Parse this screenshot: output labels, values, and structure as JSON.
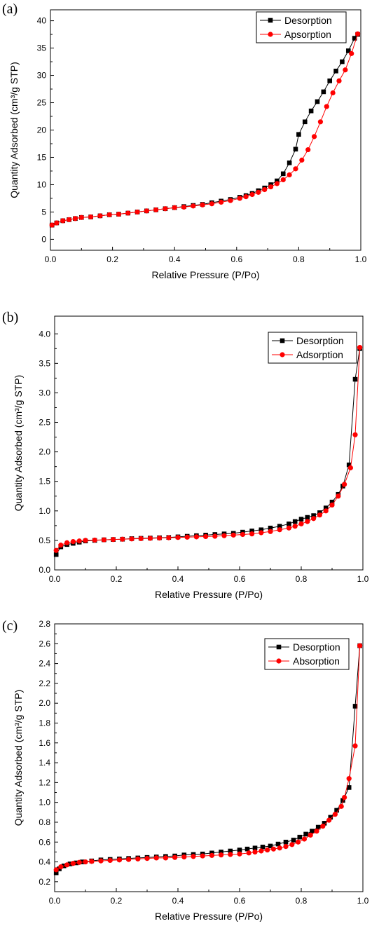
{
  "chart_data": [
    {
      "type": "scatter",
      "panel_label": "(a)",
      "xlabel": "Relative Pressure (P/Po)",
      "ylabel": "Quantity Adsorbed (cm³/g STP)",
      "xlim": [
        0,
        1.0
      ],
      "ylim": [
        -2,
        42
      ],
      "xticks": [
        0.0,
        0.2,
        0.4,
        0.6,
        0.8,
        1.0
      ],
      "yticks": [
        0,
        5,
        10,
        15,
        20,
        25,
        30,
        35,
        40
      ],
      "xtick_labels": [
        "0.0",
        "0.2",
        "0.4",
        "0.6",
        "0.8",
        "1.0"
      ],
      "ytick_labels": [
        "0",
        "5",
        "10",
        "15",
        "20",
        "25",
        "30",
        "35",
        "40"
      ],
      "legend_position": "top-right",
      "grid": false,
      "series": [
        {
          "name": "Desorption",
          "color": "#000000",
          "marker": "square",
          "x": [
            0.99,
            0.98,
            0.96,
            0.94,
            0.92,
            0.9,
            0.88,
            0.86,
            0.84,
            0.82,
            0.8,
            0.79,
            0.77,
            0.75,
            0.73,
            0.71,
            0.69,
            0.67,
            0.65,
            0.63,
            0.61,
            0.58,
            0.55,
            0.52,
            0.49,
            0.46,
            0.43,
            0.4,
            0.37,
            0.34,
            0.31,
            0.28,
            0.25,
            0.22,
            0.19,
            0.16,
            0.13,
            0.1,
            0.08,
            0.06,
            0.04,
            0.02,
            0.005
          ],
          "y": [
            37.5,
            36.8,
            34.5,
            32.5,
            30.8,
            29.0,
            27.0,
            25.2,
            23.5,
            21.5,
            19.2,
            16.5,
            14.0,
            12.0,
            10.7,
            10.0,
            9.4,
            8.9,
            8.4,
            8.0,
            7.7,
            7.3,
            7.0,
            6.7,
            6.4,
            6.2,
            6.0,
            5.8,
            5.6,
            5.4,
            5.2,
            5.0,
            4.8,
            4.6,
            4.5,
            4.3,
            4.1,
            4.0,
            3.8,
            3.6,
            3.4,
            3.0,
            2.6
          ]
        },
        {
          "name": "Apsorption",
          "color": "#ff0000",
          "marker": "circle",
          "x": [
            0.005,
            0.02,
            0.04,
            0.06,
            0.08,
            0.1,
            0.13,
            0.16,
            0.19,
            0.22,
            0.25,
            0.28,
            0.31,
            0.34,
            0.37,
            0.4,
            0.43,
            0.46,
            0.49,
            0.52,
            0.55,
            0.58,
            0.61,
            0.63,
            0.65,
            0.67,
            0.69,
            0.71,
            0.73,
            0.75,
            0.77,
            0.79,
            0.81,
            0.83,
            0.85,
            0.87,
            0.89,
            0.91,
            0.93,
            0.95,
            0.97,
            0.99
          ],
          "y": [
            2.6,
            3.0,
            3.4,
            3.6,
            3.8,
            4.0,
            4.1,
            4.3,
            4.5,
            4.6,
            4.8,
            5.0,
            5.2,
            5.4,
            5.6,
            5.8,
            5.9,
            6.1,
            6.3,
            6.5,
            6.8,
            7.1,
            7.5,
            7.8,
            8.2,
            8.6,
            9.1,
            9.6,
            10.2,
            10.9,
            11.8,
            12.9,
            14.5,
            16.4,
            18.8,
            21.5,
            24.3,
            26.8,
            29.0,
            31.0,
            34.0,
            37.6
          ]
        }
      ]
    },
    {
      "type": "scatter",
      "panel_label": "(b)",
      "xlabel": "Relative Pressure (P/Po)",
      "ylabel": "Quantity Adsorbed (cm³/g STP)",
      "xlim": [
        0,
        1.0
      ],
      "ylim": [
        0,
        4.3
      ],
      "xticks": [
        0.0,
        0.2,
        0.4,
        0.6,
        0.8,
        1.0
      ],
      "yticks": [
        0.0,
        0.5,
        1.0,
        1.5,
        2.0,
        2.5,
        3.0,
        3.5,
        4.0
      ],
      "xtick_labels": [
        "0.0",
        "0.2",
        "0.4",
        "0.6",
        "0.8",
        "1.0"
      ],
      "ytick_labels": [
        "0.0",
        "0.5",
        "1.0",
        "1.5",
        "2.0",
        "2.5",
        "3.0",
        "3.5",
        "4.0"
      ],
      "legend_position": "top-right",
      "grid": false,
      "series": [
        {
          "name": "Desorption",
          "color": "#000000",
          "marker": "square",
          "x": [
            0.99,
            0.975,
            0.955,
            0.935,
            0.92,
            0.9,
            0.88,
            0.86,
            0.84,
            0.82,
            0.8,
            0.78,
            0.76,
            0.73,
            0.7,
            0.67,
            0.64,
            0.61,
            0.58,
            0.55,
            0.52,
            0.49,
            0.46,
            0.43,
            0.4,
            0.37,
            0.34,
            0.31,
            0.28,
            0.25,
            0.22,
            0.19,
            0.16,
            0.13,
            0.1,
            0.08,
            0.06,
            0.04,
            0.02,
            0.005
          ],
          "y": [
            3.75,
            3.23,
            1.78,
            1.42,
            1.28,
            1.15,
            1.05,
            0.97,
            0.92,
            0.89,
            0.86,
            0.82,
            0.78,
            0.74,
            0.71,
            0.68,
            0.66,
            0.64,
            0.62,
            0.61,
            0.6,
            0.59,
            0.58,
            0.57,
            0.56,
            0.55,
            0.545,
            0.54,
            0.535,
            0.53,
            0.52,
            0.515,
            0.51,
            0.5,
            0.49,
            0.47,
            0.45,
            0.43,
            0.39,
            0.26
          ]
        },
        {
          "name": "Adsorption",
          "color": "#ff0000",
          "marker": "circle",
          "x": [
            0.005,
            0.02,
            0.04,
            0.06,
            0.08,
            0.1,
            0.13,
            0.16,
            0.19,
            0.22,
            0.25,
            0.28,
            0.31,
            0.34,
            0.37,
            0.4,
            0.43,
            0.46,
            0.49,
            0.52,
            0.55,
            0.58,
            0.61,
            0.64,
            0.67,
            0.7,
            0.73,
            0.76,
            0.78,
            0.8,
            0.82,
            0.84,
            0.86,
            0.88,
            0.9,
            0.92,
            0.94,
            0.96,
            0.975,
            0.99
          ],
          "y": [
            0.33,
            0.42,
            0.46,
            0.48,
            0.49,
            0.5,
            0.505,
            0.51,
            0.515,
            0.52,
            0.525,
            0.53,
            0.535,
            0.54,
            0.545,
            0.55,
            0.555,
            0.56,
            0.565,
            0.57,
            0.58,
            0.59,
            0.6,
            0.61,
            0.63,
            0.65,
            0.68,
            0.71,
            0.74,
            0.78,
            0.82,
            0.87,
            0.93,
            1.0,
            1.1,
            1.25,
            1.45,
            1.73,
            2.29,
            3.77
          ]
        }
      ]
    },
    {
      "type": "scatter",
      "panel_label": "(c)",
      "xlabel": "Relative Pressure (P/Po)",
      "ylabel": "Quantity Adsorbed (cm³/g STP)",
      "xlim": [
        0,
        1.0
      ],
      "ylim": [
        0.1,
        2.8
      ],
      "xticks": [
        0.0,
        0.2,
        0.4,
        0.6,
        0.8,
        1.0
      ],
      "yticks": [
        0.2,
        0.4,
        0.6,
        0.8,
        1.0,
        1.2,
        1.4,
        1.6,
        1.8,
        2.0,
        2.2,
        2.4,
        2.6,
        2.8
      ],
      "xtick_labels": [
        "0.0",
        "0.2",
        "0.4",
        "0.6",
        "0.8",
        "1.0"
      ],
      "ytick_labels": [
        "0.2",
        "0.4",
        "0.6",
        "0.8",
        "1.0",
        "1.2",
        "1.4",
        "1.6",
        "1.8",
        "2.0",
        "2.2",
        "2.4",
        "2.6",
        "2.8"
      ],
      "legend_position": "top-right",
      "grid": false,
      "series": [
        {
          "name": "Desorption",
          "color": "#000000",
          "marker": "square",
          "x": [
            0.99,
            0.975,
            0.955,
            0.935,
            0.915,
            0.895,
            0.875,
            0.855,
            0.835,
            0.815,
            0.795,
            0.775,
            0.75,
            0.725,
            0.7,
            0.675,
            0.65,
            0.625,
            0.6,
            0.57,
            0.54,
            0.51,
            0.48,
            0.45,
            0.42,
            0.39,
            0.36,
            0.33,
            0.3,
            0.27,
            0.24,
            0.21,
            0.18,
            0.15,
            0.12,
            0.09,
            0.07,
            0.05,
            0.03,
            0.015,
            0.005
          ],
          "y": [
            2.58,
            1.97,
            1.15,
            1.02,
            0.92,
            0.85,
            0.79,
            0.75,
            0.71,
            0.68,
            0.65,
            0.62,
            0.6,
            0.58,
            0.56,
            0.55,
            0.54,
            0.53,
            0.52,
            0.51,
            0.5,
            0.49,
            0.48,
            0.475,
            0.47,
            0.46,
            0.455,
            0.45,
            0.445,
            0.44,
            0.435,
            0.43,
            0.425,
            0.42,
            0.41,
            0.4,
            0.39,
            0.38,
            0.36,
            0.33,
            0.29
          ]
        },
        {
          "name": "Absorption",
          "color": "#ff0000",
          "marker": "circle",
          "x": [
            0.005,
            0.02,
            0.04,
            0.06,
            0.08,
            0.1,
            0.12,
            0.15,
            0.18,
            0.21,
            0.24,
            0.27,
            0.3,
            0.33,
            0.36,
            0.39,
            0.42,
            0.45,
            0.48,
            0.51,
            0.54,
            0.57,
            0.6,
            0.63,
            0.65,
            0.67,
            0.69,
            0.71,
            0.73,
            0.75,
            0.77,
            0.79,
            0.81,
            0.83,
            0.85,
            0.87,
            0.89,
            0.91,
            0.93,
            0.94,
            0.955,
            0.975,
            0.99
          ],
          "y": [
            0.32,
            0.35,
            0.37,
            0.385,
            0.395,
            0.4,
            0.405,
            0.41,
            0.415,
            0.42,
            0.425,
            0.43,
            0.435,
            0.44,
            0.44,
            0.445,
            0.45,
            0.455,
            0.46,
            0.465,
            0.47,
            0.475,
            0.48,
            0.49,
            0.5,
            0.51,
            0.52,
            0.53,
            0.54,
            0.555,
            0.575,
            0.6,
            0.63,
            0.67,
            0.71,
            0.76,
            0.82,
            0.88,
            0.96,
            1.05,
            1.24,
            1.57,
            2.58
          ]
        }
      ]
    }
  ]
}
